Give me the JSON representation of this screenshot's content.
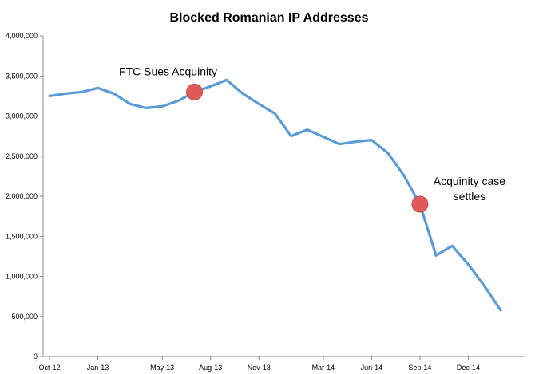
{
  "chart_data": {
    "type": "line",
    "title": "Blocked Romanian IP Addresses",
    "xlabel": "",
    "ylabel": "",
    "ylim": [
      0,
      4000000
    ],
    "yticks": [
      0,
      500000,
      1000000,
      1500000,
      2000000,
      2500000,
      3000000,
      3500000,
      4000000
    ],
    "ytick_labels": [
      "0",
      "500,000",
      "1,000,000",
      "1,500,000",
      "2,000,000",
      "2,500,000",
      "3,000,000",
      "3,500,000",
      "4,000,000"
    ],
    "xtick_labels": [
      "Oct-12",
      "Jan-13",
      "May-13",
      "Aug-13",
      "Nov-13",
      "Mar-14",
      "Jun-14",
      "Sep-14",
      "Dec-14"
    ],
    "xtick_index": [
      0,
      3,
      7,
      10,
      13,
      17,
      20,
      23,
      26
    ],
    "grid": false,
    "line_color": "#5b9bd5",
    "marker_color": "#e05a5a",
    "series": [
      {
        "name": "",
        "values": [
          3250000,
          3280000,
          3300000,
          3350000,
          3280000,
          3150000,
          3100000,
          3120000,
          3190000,
          3300000,
          3370000,
          3450000,
          3280000,
          3150000,
          3030000,
          2750000,
          2830000,
          2740000,
          2650000,
          2680000,
          2700000,
          2540000,
          2260000,
          1900000,
          1260000,
          1380000,
          1150000,
          880000,
          580000
        ]
      }
    ],
    "annotations": [
      {
        "lines": [
          "FTC Sues Acquinity"
        ],
        "x_index": 9,
        "y": 3300000
      },
      {
        "lines": [
          "Acquinity case",
          "settles"
        ],
        "x_index": 23,
        "y": 1900000
      }
    ]
  }
}
